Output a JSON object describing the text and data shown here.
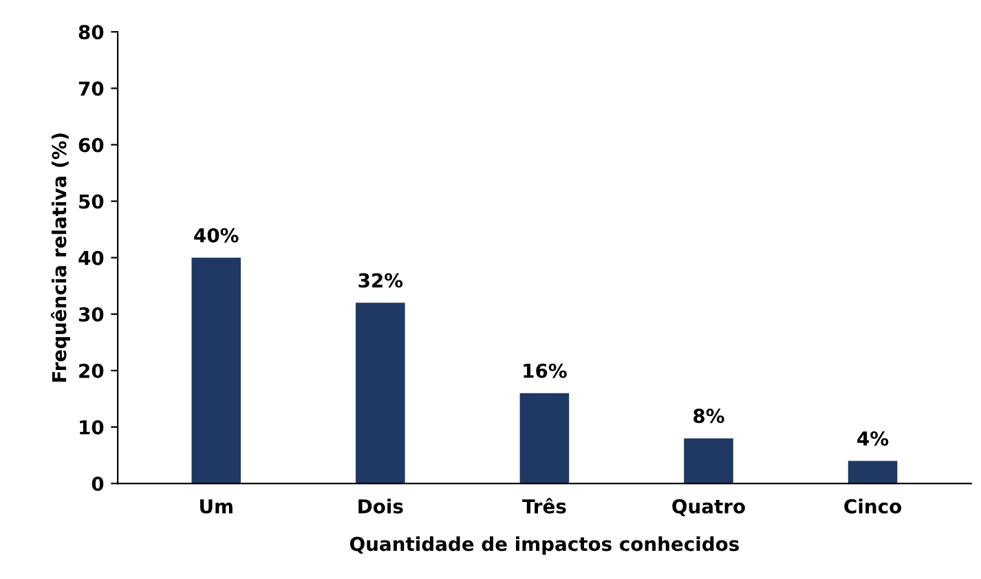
{
  "chart_data": {
    "type": "bar",
    "xlabel": "Quantidade de impactos conhecidos",
    "ylabel": "Frequência relativa (%)",
    "categories": [
      "Um",
      "Dois",
      "Três",
      "Quatro",
      "Cinco"
    ],
    "values": [
      40,
      32,
      16,
      8,
      4
    ],
    "value_labels": [
      "40%",
      "32%",
      "16%",
      "8%",
      "4%"
    ],
    "color": "#1f3864",
    "ylim": [
      0,
      80
    ],
    "yticks": [
      0,
      10,
      20,
      30,
      40,
      50,
      60,
      70,
      80
    ],
    "grid": false
  }
}
